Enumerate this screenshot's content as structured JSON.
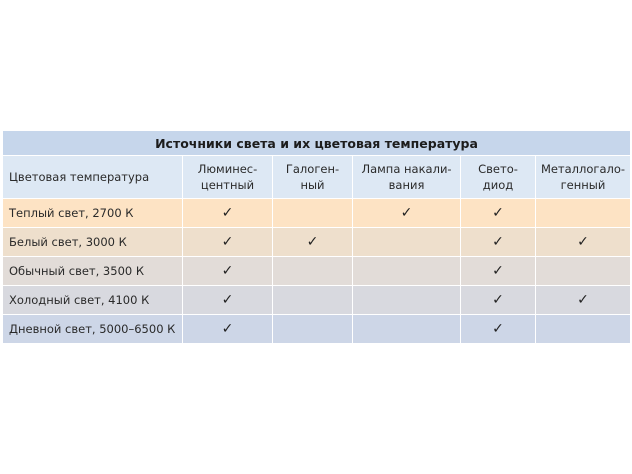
{
  "table": {
    "title": "Источники света и их цветовая температура",
    "headers": [
      "Цветовая температура",
      "Люминес-\nцентный",
      "Галоген-\nный",
      "Лампа накали-\nвания",
      "Свето-\nдиод",
      "Металлогало-\nгенный"
    ],
    "rows": [
      {
        "label": "Теплый свет, 2700 К",
        "checks": [
          true,
          false,
          true,
          true,
          false
        ],
        "color": "#fde3c4"
      },
      {
        "label": "Белый свет, 3000 К",
        "checks": [
          true,
          true,
          false,
          true,
          true
        ],
        "color": "#eedfcc"
      },
      {
        "label": "Обычный свет, 3500 К",
        "checks": [
          true,
          false,
          false,
          true,
          false
        ],
        "color": "#e2dcd8"
      },
      {
        "label": "Холодный свет, 4100 К",
        "checks": [
          true,
          false,
          false,
          true,
          true
        ],
        "color": "#d8d9df"
      },
      {
        "label": "Дневной свет, 5000–6500 К",
        "checks": [
          true,
          false,
          false,
          true,
          false
        ],
        "color": "#cdd6e7"
      }
    ],
    "check_glyph": "✓"
  }
}
